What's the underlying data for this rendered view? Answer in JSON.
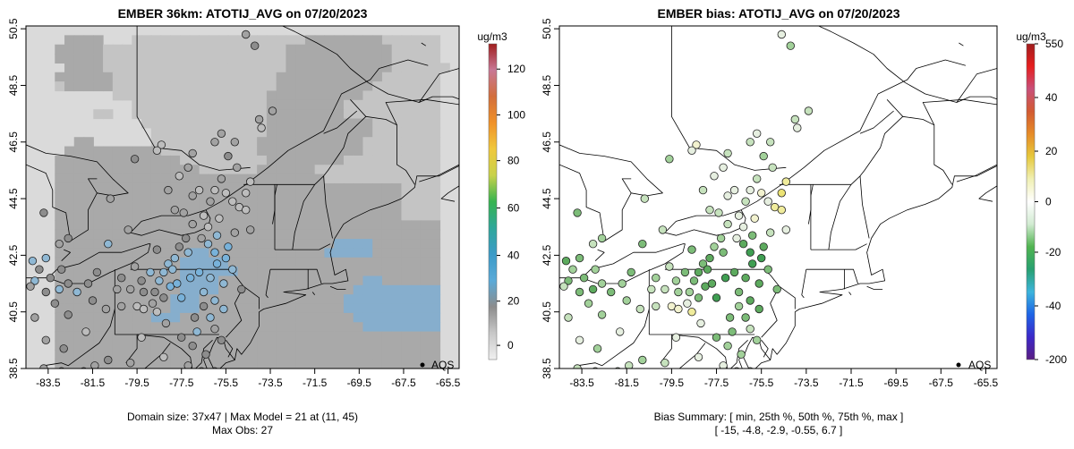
{
  "panels": [
    {
      "title": "EMBER 36km: ATOTIJ_AVG on 07/20/2023",
      "colorbar": {
        "unit": "ug/m3",
        "ticks": [
          "0",
          "20",
          "40",
          "60",
          "80",
          "100",
          "120"
        ],
        "stops": [
          "#f0f0f0",
          "#c8c8c8",
          "#8c8c8c",
          "#5aaad8",
          "#3c9bc8",
          "#2fa79a",
          "#36b450",
          "#c8d24b",
          "#f0c83c",
          "#f09128",
          "#d26e3c",
          "#c87896",
          "#a01e1e"
        ]
      },
      "legend_label": "AQS",
      "footer_lines": [
        "Domain size: 37x47 | Max Model = 21 at (11, 45)",
        "Max Obs: 27"
      ]
    },
    {
      "title": "EMBER bias: ATOTIJ_AVG on 07/20/2023",
      "colorbar": {
        "unit": "ug/m3",
        "ticks": [
          "-200",
          "-40",
          "-20",
          "0",
          "20",
          "40",
          "550"
        ],
        "stops": [
          "#5a1e82",
          "#3c28c8",
          "#1e64e6",
          "#3cb4dc",
          "#28a070",
          "#50b450",
          "#d2ebd2",
          "#ffffff",
          "#f0f0b4",
          "#e6c83c",
          "#e68c28",
          "#d25a32",
          "#c8507a",
          "#e61e1e",
          "#a01e1e"
        ]
      },
      "legend_label": "AQS",
      "footer_lines": [
        "Bias Summary: [ min, 25th %, 50th %, 75th %, max ]",
        "[ -15,   -4.8,   -2.9,   -0.55,   6.7 ]"
      ]
    }
  ],
  "chart_data": [
    {
      "type": "heatmap",
      "title": "EMBER 36km: ATOTIJ_AVG on 07/20/2023",
      "variable": "ATOTIJ_AVG",
      "date": "07/20/2023",
      "unit": "ug/m3",
      "x_ticks": [
        "-83.5",
        "-81.5",
        "-79.5",
        "-77.5",
        "-75.5",
        "-73.5",
        "-71.5",
        "-69.5",
        "-67.5",
        "-65.5"
      ],
      "y_ticks": [
        "38.5",
        "40.5",
        "42.5",
        "44.5",
        "46.5",
        "48.5",
        "50.5"
      ],
      "xlim": [
        -84.5,
        -65
      ],
      "ylim": [
        38.5,
        50.5
      ],
      "colorbar_range": [
        -8,
        127
      ],
      "domain_size": "37x47",
      "max_model": 21,
      "max_model_cell": [
        11,
        45
      ],
      "max_obs": 27,
      "legend": [
        "AQS"
      ],
      "grid_rows": [
        "000000000000000000000000000000000000000000000",
        "000022220001111111111111111112222222211111100",
        "000222221111111111111111111222222222221111100",
        "000222221111111111111111111222222222221111100",
        "000022221111111111111111111222222222221111110",
        "000222222111111111111111112222222222211111100",
        "000122222111111111111111112222222222111111100",
        "000000000111111111111111122222222221111111100",
        "000000000001111111111111122222222111111111100",
        "000000011001111111111111122222222111111111100",
        "000000000000111111111111122222222222111111100",
        "000000000000011111111111122222222222111111100",
        "000002200000011111111111222222222221111111100",
        "000022222222221111111111222222222221111111100",
        "000222222222222211111111122222222111111111100",
        "000222222222222222111111222222111111111111100",
        "000222222222222222222222222222211111111111100",
        "000222222222222222222222222222222222222111100",
        "000222222222222222222222222222222222222111100",
        "000222222222222222222222222222222222222111100",
        "000222222222222222222222222222222222222111100",
        "000222222222222222222222222222222222222222200",
        "000222222222222222222222222222222222222222200",
        "000222222222222222222222222222223333222222200",
        "000222222222222223322222222222233333222222200",
        "000222222222222233333222222222222222222222200",
        "000222222222222233333322222222222222222222200",
        "000222222222222233332222222222222223322222200",
        "000222222222222233332222222222222233333333300",
        "000222222222222333222222222222222333333333300",
        "000222222222222333222222222222222333333333300",
        "000222222222233322222222222222222233333333300",
        "000222222222222222222222222222222223333333300",
        "000222222222222222222222222222222222222222200",
        "000222222222222222222222222222222222222222200",
        "000222222222222222222222222222222222222222200",
        "000222222222222222222222222222222222222222200"
      ]
    },
    {
      "type": "scatter",
      "title": "EMBER bias: ATOTIJ_AVG on 07/20/2023",
      "variable": "ATOTIJ_AVG",
      "date": "07/20/2023",
      "unit": "ug/m3",
      "x_ticks": [
        "-83.5",
        "-81.5",
        "-79.5",
        "-77.5",
        "-75.5",
        "-73.5",
        "-71.5",
        "-69.5",
        "-67.5",
        "-65.5"
      ],
      "y_ticks": [
        "38.5",
        "40.5",
        "42.5",
        "44.5",
        "46.5",
        "48.5",
        "50.5"
      ],
      "xlim": [
        -84.5,
        -65
      ],
      "ylim": [
        38.5,
        50.5
      ],
      "colorbar_range": [
        -200,
        550
      ],
      "legend": [
        "AQS"
      ],
      "bias_summary": {
        "min": -15,
        "p25": -4.8,
        "p50": -2.9,
        "p75": -0.55,
        "max": 6.7
      }
    }
  ],
  "stations": [
    {
      "lon": -74.6,
      "lat": 50.3,
      "bias": -1.0
    },
    {
      "lon": -74.2,
      "lat": 49.9,
      "bias": -3.0
    },
    {
      "lon": -73.4,
      "lat": 47.6,
      "bias": -1.5
    },
    {
      "lon": -74.0,
      "lat": 47.3,
      "bias": -2.5
    },
    {
      "lon": -73.9,
      "lat": 47.0,
      "bias": -0.5
    },
    {
      "lon": -75.7,
      "lat": 46.8,
      "bias": -1.0
    },
    {
      "lon": -76.0,
      "lat": 46.5,
      "bias": -2.0
    },
    {
      "lon": -75.1,
      "lat": 46.5,
      "bias": -1.5
    },
    {
      "lon": -78.4,
      "lat": 46.4,
      "bias": 0.5
    },
    {
      "lon": -78.6,
      "lat": 46.2,
      "bias": -0.5
    },
    {
      "lon": -77.0,
      "lat": 46.1,
      "bias": -2.0
    },
    {
      "lon": -75.4,
      "lat": 46.0,
      "bias": -3.0
    },
    {
      "lon": -79.6,
      "lat": 45.9,
      "bias": -4.0
    },
    {
      "lon": -77.2,
      "lat": 45.6,
      "bias": -1.0
    },
    {
      "lon": -75.0,
      "lat": 45.6,
      "bias": -2.5
    },
    {
      "lon": -77.6,
      "lat": 45.3,
      "bias": -0.5
    },
    {
      "lon": -75.7,
      "lat": 45.2,
      "bias": -1.5
    },
    {
      "lon": -74.4,
      "lat": 45.1,
      "bias": 2.5
    },
    {
      "lon": -78.1,
      "lat": 44.8,
      "bias": -2.0
    },
    {
      "lon": -76.7,
      "lat": 44.8,
      "bias": -0.5
    },
    {
      "lon": -76.0,
      "lat": 44.8,
      "bias": 0.0
    },
    {
      "lon": -75.5,
      "lat": 44.7,
      "bias": 1.5
    },
    {
      "lon": -74.6,
      "lat": 44.7,
      "bias": 3.5
    },
    {
      "lon": -77.0,
      "lat": 44.6,
      "bias": -1.0
    },
    {
      "lon": -76.2,
      "lat": 44.4,
      "bias": -2.0
    },
    {
      "lon": -80.7,
      "lat": 44.5,
      "bias": -1.5
    },
    {
      "lon": -75.2,
      "lat": 44.4,
      "bias": -0.5
    },
    {
      "lon": -74.9,
      "lat": 44.2,
      "bias": 2.0
    },
    {
      "lon": -74.6,
      "lat": 44.1,
      "bias": 3.0
    },
    {
      "lon": -77.8,
      "lat": 44.1,
      "bias": -2.5
    },
    {
      "lon": -77.4,
      "lat": 44.0,
      "bias": -1.5
    },
    {
      "lon": -76.5,
      "lat": 43.9,
      "bias": -0.5
    },
    {
      "lon": -75.8,
      "lat": 43.8,
      "bias": 1.0
    },
    {
      "lon": -83.7,
      "lat": 44.0,
      "bias": -5.0
    },
    {
      "lon": -77.0,
      "lat": 43.6,
      "bias": -2.0
    },
    {
      "lon": -76.3,
      "lat": 43.5,
      "bias": -0.5
    },
    {
      "lon": -79.9,
      "lat": 43.4,
      "bias": -1.5
    },
    {
      "lon": -77.3,
      "lat": 43.1,
      "bias": -3.0
    },
    {
      "lon": -76.6,
      "lat": 43.1,
      "bias": -1.0
    },
    {
      "lon": -82.6,
      "lat": 43.1,
      "bias": -3.5
    },
    {
      "lon": -83.0,
      "lat": 42.9,
      "bias": -2.5
    },
    {
      "lon": -80.8,
      "lat": 42.9,
      "bias": -7.0
    },
    {
      "lon": -77.6,
      "lat": 42.8,
      "bias": -4.0
    },
    {
      "lon": -78.6,
      "lat": 42.7,
      "bias": -5.5
    },
    {
      "lon": -77.2,
      "lat": 42.6,
      "bias": -6.0
    },
    {
      "lon": -77.8,
      "lat": 42.4,
      "bias": -8.0
    },
    {
      "lon": -78.1,
      "lat": 42.2,
      "bias": -7.5
    },
    {
      "lon": -84.2,
      "lat": 42.3,
      "bias": -9.0
    },
    {
      "lon": -83.6,
      "lat": 42.4,
      "bias": -6.0
    },
    {
      "lon": -77.9,
      "lat": 42.0,
      "bias": -9.5
    },
    {
      "lon": -78.3,
      "lat": 41.9,
      "bias": -8.0
    },
    {
      "lon": -83.9,
      "lat": 42.0,
      "bias": -4.0
    },
    {
      "lon": -82.9,
      "lat": 42.0,
      "bias": -3.0
    },
    {
      "lon": -79.6,
      "lat": 42.1,
      "bias": -2.5
    },
    {
      "lon": -81.3,
      "lat": 41.9,
      "bias": -5.0
    },
    {
      "lon": -78.9,
      "lat": 41.9,
      "bias": -6.0
    },
    {
      "lon": -78.5,
      "lat": 41.6,
      "bias": -7.0
    },
    {
      "lon": -78.0,
      "lat": 41.4,
      "bias": -10.0
    },
    {
      "lon": -77.7,
      "lat": 41.5,
      "bias": -11.0
    },
    {
      "lon": -79.3,
      "lat": 41.6,
      "bias": -4.5
    },
    {
      "lon": -80.2,
      "lat": 41.7,
      "bias": -3.5
    },
    {
      "lon": -84.1,
      "lat": 41.6,
      "bias": -6.0
    },
    {
      "lon": -83.4,
      "lat": 41.7,
      "bias": -5.0
    },
    {
      "lon": -82.6,
      "lat": 41.5,
      "bias": -4.0
    },
    {
      "lon": -81.7,
      "lat": 41.5,
      "bias": -3.0
    },
    {
      "lon": -83.0,
      "lat": 41.3,
      "bias": -8.0
    },
    {
      "lon": -82.2,
      "lat": 41.2,
      "bias": -6.5
    },
    {
      "lon": -83.6,
      "lat": 41.2,
      "bias": -5.5
    },
    {
      "lon": -84.3,
      "lat": 41.4,
      "bias": -2.0
    },
    {
      "lon": -80.4,
      "lat": 41.3,
      "bias": -2.0
    },
    {
      "lon": -79.8,
      "lat": 41.3,
      "bias": -1.5
    },
    {
      "lon": -79.2,
      "lat": 41.2,
      "bias": -3.0
    },
    {
      "lon": -78.7,
      "lat": 41.2,
      "bias": -4.0
    },
    {
      "lon": -78.3,
      "lat": 41.0,
      "bias": -5.0
    },
    {
      "lon": -78.8,
      "lat": 40.8,
      "bias": -1.0
    },
    {
      "lon": -79.5,
      "lat": 40.7,
      "bias": 0.5
    },
    {
      "lon": -81.5,
      "lat": 40.9,
      "bias": -3.5
    },
    {
      "lon": -80.9,
      "lat": 40.6,
      "bias": -2.5
    },
    {
      "lon": -80.2,
      "lat": 40.7,
      "bias": -1.5
    },
    {
      "lon": -83.2,
      "lat": 40.8,
      "bias": -4.5
    },
    {
      "lon": -82.6,
      "lat": 40.4,
      "bias": -3.0
    },
    {
      "lon": -84.1,
      "lat": 40.3,
      "bias": -2.0
    },
    {
      "lon": -79.2,
      "lat": 40.6,
      "bias": 1.5
    },
    {
      "lon": -78.6,
      "lat": 40.5,
      "bias": 2.0
    },
    {
      "lon": -78.2,
      "lat": 40.1,
      "bias": -1.0
    },
    {
      "lon": -81.8,
      "lat": 39.8,
      "bias": -0.5
    },
    {
      "lon": -79.3,
      "lat": 39.6,
      "bias": 0.0
    },
    {
      "lon": -82.8,
      "lat": 39.2,
      "bias": -3.0
    },
    {
      "lon": -83.6,
      "lat": 39.5,
      "bias": -1.0
    },
    {
      "lon": -80.8,
      "lat": 38.8,
      "bias": -4.0
    },
    {
      "lon": -79.8,
      "lat": 38.7,
      "bias": -1.5
    },
    {
      "lon": -78.3,
      "lat": 38.9,
      "bias": -0.5
    },
    {
      "lon": -83.7,
      "lat": 38.5,
      "bias": -2.0
    },
    {
      "lon": -82.9,
      "lat": 38.4,
      "bias": -2.5
    },
    {
      "lon": -81.9,
      "lat": 38.4,
      "bias": -3.0
    },
    {
      "lon": -81.4,
      "lat": 38.6,
      "bias": -2.0
    },
    {
      "lon": -77.2,
      "lat": 38.6,
      "bias": -1.0
    },
    {
      "lon": -76.6,
      "lat": 38.4,
      "bias": -2.5
    },
    {
      "lon": -76.0,
      "lat": 38.4,
      "bias": -1.5
    },
    {
      "lon": -76.4,
      "lat": 39.0,
      "bias": -3.5
    },
    {
      "lon": -77.0,
      "lat": 39.3,
      "bias": -4.5
    },
    {
      "lon": -77.5,
      "lat": 39.6,
      "bias": -5.0
    },
    {
      "lon": -76.8,
      "lat": 39.8,
      "bias": -6.0
    },
    {
      "lon": -76.0,
      "lat": 39.9,
      "bias": -2.0
    },
    {
      "lon": -75.7,
      "lat": 39.5,
      "bias": -3.0
    },
    {
      "lon": -76.2,
      "lat": 40.3,
      "bias": -6.5
    },
    {
      "lon": -76.9,
      "lat": 40.3,
      "bias": -5.0
    },
    {
      "lon": -76.5,
      "lat": 40.7,
      "bias": -4.0
    },
    {
      "lon": -77.5,
      "lat": 41.0,
      "bias": -12.0
    },
    {
      "lon": -76.5,
      "lat": 41.2,
      "bias": -7.0
    },
    {
      "lon": -76.0,
      "lat": 40.9,
      "bias": -8.0
    },
    {
      "lon": -75.6,
      "lat": 40.6,
      "bias": -9.0
    },
    {
      "lon": -77.1,
      "lat": 41.7,
      "bias": -13.0
    },
    {
      "lon": -76.7,
      "lat": 41.9,
      "bias": -10.0
    },
    {
      "lon": -76.2,
      "lat": 41.7,
      "bias": -9.5
    },
    {
      "lon": -75.9,
      "lat": 42.2,
      "bias": -12.0
    },
    {
      "lon": -76.0,
      "lat": 42.6,
      "bias": -14.0
    },
    {
      "lon": -76.3,
      "lat": 42.9,
      "bias": -8.5
    },
    {
      "lon": -75.4,
      "lat": 42.8,
      "bias": -11.0
    },
    {
      "lon": -75.5,
      "lat": 42.4,
      "bias": -15.0
    },
    {
      "lon": -75.2,
      "lat": 42.0,
      "bias": -7.0
    },
    {
      "lon": -75.6,
      "lat": 41.5,
      "bias": -8.0
    },
    {
      "lon": -74.8,
      "lat": 41.3,
      "bias": -5.5
    },
    {
      "lon": -75.9,
      "lat": 43.2,
      "bias": -6.0
    },
    {
      "lon": -75.1,
      "lat": 43.3,
      "bias": -2.0
    },
    {
      "lon": -74.4,
      "lat": 43.4,
      "bias": -1.0
    }
  ]
}
